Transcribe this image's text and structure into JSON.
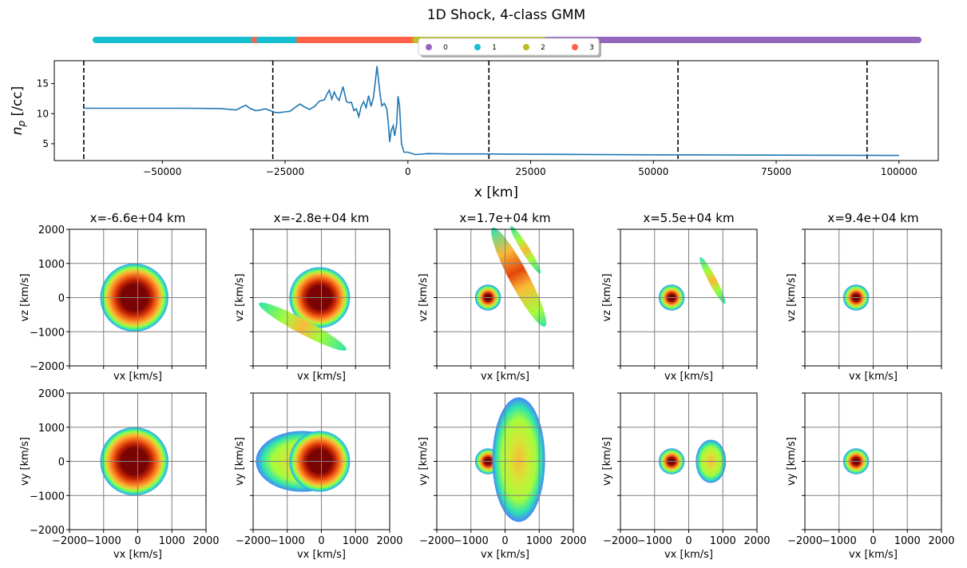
{
  "chart_data": {
    "title": "1D Shock, 4-class GMM",
    "class_strip": {
      "type": "scatter",
      "x_range": [
        -66000,
        100000
      ],
      "segments": [
        {
          "x0": -66000,
          "x1": -34000,
          "class": "1"
        },
        {
          "x0": -34000,
          "x1": -33000,
          "class": "3"
        },
        {
          "x0": -33000,
          "x1": -25000,
          "class": "1"
        },
        {
          "x0": -25000,
          "x1": -1500,
          "class": "3"
        },
        {
          "x0": -1500,
          "x1": 25000,
          "class": "2"
        },
        {
          "x0": 25000,
          "x1": 100000,
          "class": "0"
        }
      ],
      "legend": [
        {
          "label": "0",
          "color": "#9467bd"
        },
        {
          "label": "1",
          "color": "#17becf"
        },
        {
          "label": "2",
          "color": "#bcbd22"
        },
        {
          "label": "3",
          "color": "#ff6347"
        }
      ],
      "legend_placement": "top-center"
    },
    "density": {
      "type": "line",
      "xlabel": "x [km]",
      "ylabel": "n_p [/cc]",
      "xlim": [
        -72000,
        108000
      ],
      "ylim": [
        2.2,
        18.8
      ],
      "xticks": [
        -50000,
        -25000,
        0,
        25000,
        50000,
        75000,
        100000
      ],
      "xtick_labels": [
        "−50000",
        "−25000",
        "0",
        "25000",
        "50000",
        "75000",
        "100000"
      ],
      "yticks": [
        5,
        10,
        15
      ],
      "ytick_labels": [
        "5",
        "10",
        "15"
      ],
      "vlines": [
        -66000,
        -27500,
        16500,
        55000,
        93500
      ],
      "color": "#1f77b4",
      "points": [
        [
          -66000,
          10.9
        ],
        [
          -45000,
          10.9
        ],
        [
          -38000,
          10.85
        ],
        [
          -35000,
          10.6
        ],
        [
          -33800,
          11.1
        ],
        [
          -33000,
          11.4
        ],
        [
          -32200,
          10.9
        ],
        [
          -31000,
          10.5
        ],
        [
          -30000,
          10.6
        ],
        [
          -29000,
          10.8
        ],
        [
          -28000,
          10.5
        ],
        [
          -27000,
          10.2
        ],
        [
          -26000,
          10.2
        ],
        [
          -25000,
          10.3
        ],
        [
          -24000,
          10.4
        ],
        [
          -23000,
          11.0
        ],
        [
          -22000,
          11.6
        ],
        [
          -21000,
          11.1
        ],
        [
          -20000,
          10.7
        ],
        [
          -19000,
          11.2
        ],
        [
          -18000,
          12.1
        ],
        [
          -17000,
          12.3
        ],
        [
          -16500,
          13.2
        ],
        [
          -16000,
          13.9
        ],
        [
          -15500,
          12.4
        ],
        [
          -15000,
          13.6
        ],
        [
          -14500,
          12.7
        ],
        [
          -14000,
          12.2
        ],
        [
          -13200,
          14.5
        ],
        [
          -12500,
          12.0
        ],
        [
          -12000,
          11.8
        ],
        [
          -11500,
          11.9
        ],
        [
          -11000,
          10.5
        ],
        [
          -10500,
          10.8
        ],
        [
          -10000,
          9.5
        ],
        [
          -9500,
          11.2
        ],
        [
          -9000,
          12.0
        ],
        [
          -8500,
          11.0
        ],
        [
          -8000,
          13.0
        ],
        [
          -7500,
          11.2
        ],
        [
          -7000,
          12.8
        ],
        [
          -6600,
          15.5
        ],
        [
          -6300,
          17.9
        ],
        [
          -6000,
          15.8
        ],
        [
          -5700,
          13.5
        ],
        [
          -5300,
          11.3
        ],
        [
          -4800,
          11.7
        ],
        [
          -4300,
          10.8
        ],
        [
          -4000,
          8.5
        ],
        [
          -3700,
          5.3
        ],
        [
          -3400,
          7.2
        ],
        [
          -3000,
          8.0
        ],
        [
          -2700,
          6.3
        ],
        [
          -2300,
          8.2
        ],
        [
          -2000,
          12.9
        ],
        [
          -1700,
          11.4
        ],
        [
          -1300,
          5.0
        ],
        [
          -800,
          3.6
        ],
        [
          0,
          3.6
        ],
        [
          1500,
          3.2
        ],
        [
          4000,
          3.35
        ],
        [
          9000,
          3.3
        ],
        [
          15000,
          3.3
        ],
        [
          25000,
          3.25
        ],
        [
          50000,
          3.15
        ],
        [
          75000,
          3.1
        ],
        [
          100000,
          3.05
        ]
      ]
    },
    "vdist_panels": {
      "columns": [
        {
          "title": "x=-6.6e+04 km",
          "core_vx": -100,
          "core_vz": 0,
          "core_vy": 0,
          "core_size": "large"
        },
        {
          "title": "x=-2.8e+04 km",
          "core_vx": -50,
          "core_vz": 0,
          "core_vy": 0,
          "core_size": "large"
        },
        {
          "title": "x=1.7e+04 km",
          "core_vx": -500,
          "core_vz": 0,
          "core_vy": 0,
          "core_size": "small"
        },
        {
          "title": "x=5.5e+04 km",
          "core_vx": -500,
          "core_vz": 0,
          "core_vy": 0,
          "core_size": "small"
        },
        {
          "title": "x=9.4e+04 km",
          "core_vx": -500,
          "core_vz": 0,
          "core_vy": 0,
          "core_size": "small"
        }
      ],
      "row_ylabels": [
        "vz [km/s]",
        "vy [km/s]"
      ],
      "xlabel": "vx [km/s]",
      "xlim": [
        -2000,
        2000
      ],
      "ylim": [
        -2000,
        2000
      ],
      "ticks": [
        -2000,
        -1000,
        0,
        1000,
        2000
      ],
      "tick_labels": [
        "−2000",
        "−1000",
        "0",
        "1000",
        "2000"
      ]
    }
  }
}
